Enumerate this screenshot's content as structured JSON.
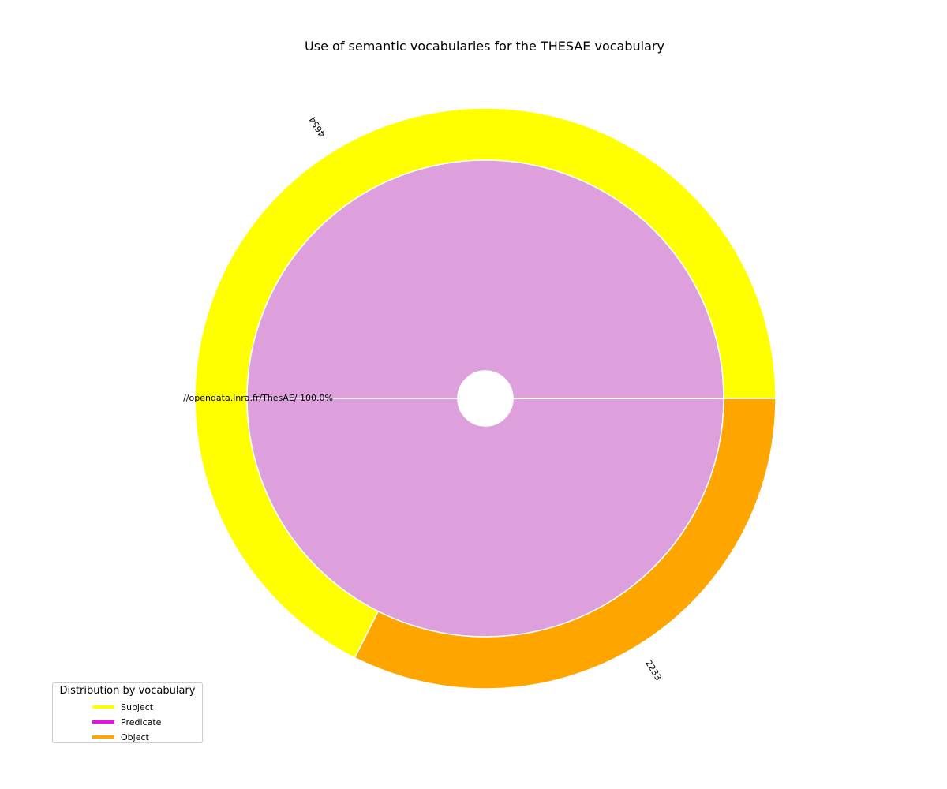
{
  "chart_data": {
    "type": "pie",
    "title": "Use of semantic vocabularies for the THESAE vocabulary",
    "outer_ring": {
      "slices": [
        {
          "name": "Subject",
          "value": 4654,
          "label": "4654",
          "color": "#ffff00"
        },
        {
          "name": "Object",
          "value": 2233,
          "label": "2233",
          "color": "#ffa500"
        }
      ]
    },
    "inner_ring": {
      "slices": [
        {
          "name": "//opendata.inra.fr/ThesAE/",
          "value": 100.0,
          "label": "//opendata.inra.fr/ThesAE/  100.0%",
          "color": "#dda0dd"
        }
      ]
    },
    "legend": {
      "title": "Distribution by vocabulary",
      "placement": "lower-left",
      "entries": [
        {
          "label": "Subject",
          "color": "#ffff00"
        },
        {
          "label": "Predicate",
          "color": "#ff00ff"
        },
        {
          "label": "Object",
          "color": "#ffa500"
        }
      ]
    }
  }
}
